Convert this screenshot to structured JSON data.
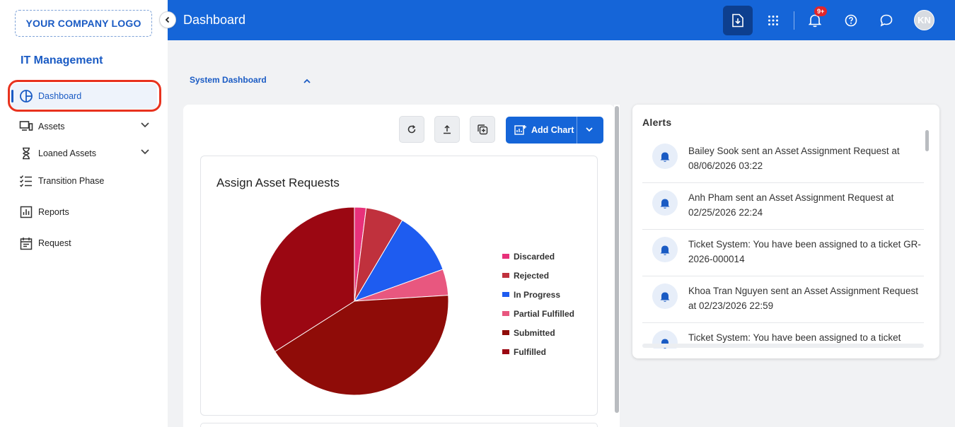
{
  "sidebar": {
    "logo": "YOUR COMPANY LOGO",
    "section_title": "IT Management",
    "items": [
      {
        "label": "Dashboard",
        "icon": "pie-chart-icon"
      },
      {
        "label": "Assets",
        "icon": "devices-icon"
      },
      {
        "label": "Loaned Assets",
        "icon": "hourglass-icon"
      },
      {
        "label": "Transition Phase",
        "icon": "checklist-icon"
      },
      {
        "label": "Reports",
        "icon": "bar-chart-icon"
      },
      {
        "label": "Request",
        "icon": "calendar-icon"
      }
    ]
  },
  "header": {
    "title": "Dashboard",
    "notification_badge": "9+",
    "avatar_initials": "KN"
  },
  "main": {
    "section_label": "System Dashboard",
    "add_chart_label": "Add Chart"
  },
  "chart_data": {
    "type": "pie",
    "title": "Assign Asset Requests",
    "legend_position": "right",
    "slices": [
      {
        "label": "Discarded",
        "value": 2,
        "color": "#e8317a"
      },
      {
        "label": "Rejected",
        "value": 6.5,
        "color": "#c0313d"
      },
      {
        "label": "In Progress",
        "value": 11,
        "color": "#1e5cf0"
      },
      {
        "label": "Partial Fulfilled",
        "value": 4.5,
        "color": "#e8577f"
      },
      {
        "label": "Submitted",
        "value": 42,
        "color": "#8f0c08"
      },
      {
        "label": "Fulfilled",
        "value": 34,
        "color": "#9b0712"
      }
    ]
  },
  "alerts": {
    "title": "Alerts",
    "items": [
      {
        "text": "Bailey Sook sent an Asset Assignment Request at 08/06/2026 03:22"
      },
      {
        "text": "Anh Pham sent an Asset Assignment Request at 02/25/2026 22:24"
      },
      {
        "text": "Ticket System: You have been assigned to a ticket GR-2026-000014"
      },
      {
        "text": "Khoa Tran Nguyen sent an Asset Assignment Request at 02/23/2026 22:59"
      },
      {
        "text": "Ticket System: You have been assigned to a ticket"
      }
    ]
  },
  "colors": {
    "brand": "#1565d8",
    "highlight": "#e8321e"
  }
}
